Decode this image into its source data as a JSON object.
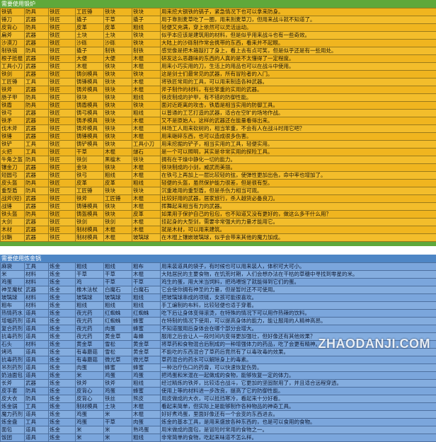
{
  "section1": {
    "title": "需要使用锻炉",
    "rows": [
      [
        "铁镐",
        "防具",
        "铁匠",
        "工匠锤",
        "铁块",
        "铁块",
        "用来挖大钢铁的镐子，紧急情况下也可以拿来防身。"
      ],
      [
        "锤刀",
        "武器",
        "铁匠",
        "撬子",
        "干草",
        "撬子",
        "用于靠割麦草吃了一圈，用来割麦草刀，但用来战斗就不知道了。"
      ],
      [
        "皮背心",
        "防具",
        "铁匠",
        "皮革",
        "皮革",
        "粗线",
        "轻便又充满，穿上依然可以灵活运动。"
      ],
      [
        "扁斧",
        "武器",
        "铁匠",
        "土块",
        "土块",
        "铁块",
        "似乎本应该是建筑用的材料，但是似乎用来战斗也有一些奇效。"
      ],
      [
        "沙漠刀",
        "武器",
        "铁匠",
        "沙砾",
        "沙砾",
        "铁块",
        "大陆上的沙砾制作常会携带的东西，看来并不起眼。"
      ],
      [
        "制铁镐",
        "防具",
        "铁匠",
        "撬子",
        "制铁",
        "制铁",
        "感觉像是把木箱敲打了身上，看上去有点可笑，但是似乎还是有一些用处。"
      ],
      [
        "根子抵棍",
        "武器",
        "铁匠",
        "大便",
        "大便",
        "木棍",
        "研发这么恶趣味的东西的人真的是不太懂得了一定程度。"
      ],
      [
        "工具小刀",
        "武器",
        "铁匠",
        "木棍",
        "铁块",
        "木棍",
        "用来小巧实用的刀，生活上的用品也可以在战斗中使用。"
      ],
      [
        "铁剑",
        "武器",
        "铁匠",
        "铸剑模具",
        "铁块",
        "铁块",
        "这是剑士们最常见的武器，所有冒险者的入门。"
      ],
      [
        "工匠锤",
        "工具",
        "铁匠",
        "铸锤模具",
        "铁块",
        "木棍",
        "将铁匠常用的工具，可以用来制造各种武器。"
      ],
      [
        "铁斧",
        "武器",
        "铁匠",
        "铸斧模具",
        "铁块",
        "木棍",
        "斧子制作的材料，有些笨重的实用的武器。"
      ],
      [
        "肠子甲",
        "防具",
        "铁匠",
        "铁块",
        "铁块",
        "粗线",
        "铁皮制成的护甲，有不错的防御性能。"
      ],
      [
        "铁盾",
        "防具",
        "铁匠",
        "铸盾模具",
        "铁块",
        "铁块",
        "面对近距离的攻击，铁盾是相当实用的防御工具。"
      ],
      [
        "铁弓",
        "武器",
        "铁匠",
        "铸弓模具",
        "铁块",
        "粗线",
        "以普通的工艺打造的武器，适合在空旷的场地作战。"
      ],
      [
        "铁矛",
        "武器",
        "铁匠",
        "铸矛模具",
        "铁块",
        "木棍",
        "又不是原始人，这样的武器还在能量看得出来。"
      ],
      [
        "伐木斧",
        "武器",
        "铁匠",
        "铸斧模具",
        "铁块",
        "木棍",
        "林场工人用来砍树的，相当笨重，不会有人在战斗时用它吧？"
      ],
      [
        "铁锤",
        "武器",
        "铁匠",
        "铸锤模具",
        "铁块",
        "木棍",
        "用来砸碎东西，也可以造成很多伤害。"
      ],
      [
        "铁铲",
        "工具",
        "铁匠",
        "铸铲模具",
        "铁块",
        "工具小刀",
        "用来挖掘的铲子，相当实用的工具，轻便实用。"
      ],
      [
        "火把",
        "工具",
        "铁匠",
        "干草",
        "木棍",
        "燧石",
        "是一个可以照明，其实是非常实用的探险工具。"
      ],
      [
        "牛角之盔",
        "防具",
        "铁匠",
        "铁剑",
        "黑檀木",
        "铁块",
        "拥有在干燥中静化一切的能力。"
      ],
      [
        "镶金刀",
        "武器",
        "铁匠",
        "金块",
        "铁块",
        "木棍",
        "铁块制成的小剑，威武而美丽。"
      ],
      [
        "短圆弓",
        "武器",
        "铁匠",
        "铁弓",
        "粗线",
        "木棍",
        "在铁弓上再加上一层比较轻的弦，使弹性更加出色，命中率也增加了。"
      ],
      [
        "皮头盔",
        "防具",
        "铁匠",
        "皮革",
        "皮革",
        "粗线",
        "轻便的头盔，虽然保护能力很差，但是很有型。"
      ],
      [
        "重型盾",
        "防具",
        "铁匠",
        "工匠锤",
        "铁块",
        "铁块",
        "沉重难用的重型盾，但是杀伤力相当可观。"
      ],
      [
        "战斧(短)",
        "武器",
        "铁匠",
        "铁斧",
        "工匠锤",
        "木棍",
        "比较好用的武器，居家旅行，杀人越货必备良刀。"
      ],
      [
        "战锤",
        "武器",
        "铁匠",
        "铸锤模具",
        "铁块",
        "木棍",
        "挥舞起来相当有力的武器。"
      ],
      [
        "铁头盔",
        "防具",
        "铁匠",
        "铸盔模具",
        "铁块",
        "皮革",
        "如果用于保护自己的包包，也不知道又没有更好的，做这么多干什么用？"
      ],
      [
        "大剑",
        "武器",
        "铁匠",
        "铁剑",
        "铁剑",
        "木棍",
        "挂起身的大型剑，需要非常强大的力量才能用它。"
      ],
      [
        "木材",
        "武器",
        "铁匠",
        "制材模具",
        "木棍",
        "木棍",
        "就是木材，可以用来建筑。"
      ],
      [
        "剑鞘",
        "武器",
        "铁匠",
        "制材模具",
        "木棍",
        "玻璃球",
        "在木棍上镶嵌玻璃球，似乎会带来其他的魔力加成。"
      ]
    ]
  },
  "section2": {
    "title": "需要使用炼金锅",
    "rows": [
      [
        "麻袋",
        "工具",
        "炼金",
        "粗线",
        "粗线",
        "粗布",
        "用来装道具的袋子，有时候也可以用来装人，体积可大可小。"
      ],
      [
        "米",
        "材料",
        "炼金",
        "干草",
        "干草",
        "木棍",
        "大陆居民的主要食物，在饥荒时期，人们会想办法在干枯的草穗中寻找到零星的米。"
      ],
      [
        "鸡蛋",
        "材料",
        "炼金",
        "鸡",
        "干草",
        "干草",
        "鸡生的蛋，用大米当饲料，把鸡喂饱了就能得到它们的蛋。"
      ],
      [
        "神圣魔杖",
        "武器",
        "炼金",
        "橡木法杖",
        "白魔石",
        "白魔石",
        "它会使你拥有神圣的力量，但是暂时还不可使用。"
      ],
      [
        "玻璃球",
        "材料",
        "炼金",
        "玻璃球",
        "玻璃球",
        "粗线",
        "把玻璃球串成的项链，女孩可能很喜欢。"
      ],
      [
        "粗布",
        "材料",
        "炼金",
        "粗线",
        "粗线",
        "粗线",
        "手工编制的布料，比较轻便也适于穿着。"
      ],
      [
        "热情药水",
        "道具",
        "炼金",
        "夜光药",
        "红蜘蛛",
        "红蜘蛛",
        "吃下后让身体变得滚烫，在特殊的情况下可以用作热辣的饮料。"
      ],
      [
        "增幅药剂",
        "道具",
        "炼金",
        "夜光药",
        "红蜘蛛",
        "蜂蜜",
        "在特制的情况下使用，可以提高身体的能力，能让服用的人精神高昂。"
      ],
      [
        "复合药剂",
        "道具",
        "炼金",
        "夜光药",
        "肉蛋",
        "蜂蜜",
        "不知道服用后身体会在哪个部分会增大。"
      ],
      [
        "抗毒药剂",
        "道具",
        "炼金",
        "夜光药",
        "黄金草",
        "毒蜂",
        "服用之后会让人一段时间内变得更加强壮，但好像还有其他效果？"
      ],
      [
        "石头",
        "材料",
        "炼金",
        "黄金草",
        "雪松",
        "黄金草",
        "将草药和食物混合后制成的一种增强体力的药品，吃了会更有精神。"
      ],
      [
        "烤鸡",
        "道具",
        "炼金",
        "有毒蘑菇",
        "雪松",
        "黄金草",
        "不能吃的东西混合了草药后竟然有了以毒攻毒的效果。"
      ],
      [
        "抗毒药剂",
        "道具",
        "炼金",
        "有毒蘑菇",
        "微光草",
        "微光草",
        "草药混合的药水可以解除身上的毒素。"
      ],
      [
        "吊剂药剂",
        "道具",
        "炼金",
        "肉蛋",
        "蜂蜜",
        "蜂蜜",
        "一种治疗伤口的药膏，可以快速恢复伤势。"
      ],
      [
        "奶油面包",
        "道具",
        "炼金",
        "米",
        "鸡蛋",
        "鸡蛋",
        "把鸡蛋和米混在一起做成的食物，能够恢复一定的体力。"
      ],
      [
        "长斧",
        "武器",
        "炼金",
        "铁斧",
        "铁斧",
        "粗线",
        "经过精炼的铁斧，比较适合战斗，它更加的坚固耐用了，并且适合远程穿透。"
      ],
      [
        "皮手套",
        "防具",
        "炼金",
        "皮背心",
        "鸡蛋",
        "蜂蜜",
        "使用上等的材料进一步改良，提高了它的防御性能。"
      ],
      [
        "皮大衣",
        "防具",
        "炼金",
        "皮背心",
        "铁丝",
        "熊皮",
        "用皮做成的大衣，可以抵挡寒冷，看起来十分好看。"
      ],
      [
        "炼金锅",
        "工具",
        "炼金",
        "制材模具",
        "土块",
        "木棍",
        "看起来简单，但实际上是能够制作各种物品的神奇工具。"
      ],
      [
        "魔力药剂",
        "道具",
        "炼金",
        "鸡蛋",
        "米",
        "木棍",
        "好好煮鸡蛋，里面好像还有一个会变的东西进去。"
      ],
      [
        "炼金盘",
        "工具",
        "炼金",
        "鸡蛋",
        "干草",
        "肉蛋",
        "炼金的基本工具，是用来盛放各种东西的，也是可以食用的食物。"
      ],
      [
        "面包",
        "道具",
        "炼金",
        "米",
        "米",
        "熟鸡蛋",
        "用米做成的面包，是冒险时常用的食物之一。"
      ],
      [
        "饭团",
        "道具",
        "炼金",
        "米",
        "米",
        "粗线",
        "非常简单的食物，吃起来味道不怎么样。"
      ]
    ]
  },
  "watermark": "ZHAODANJI.COM"
}
